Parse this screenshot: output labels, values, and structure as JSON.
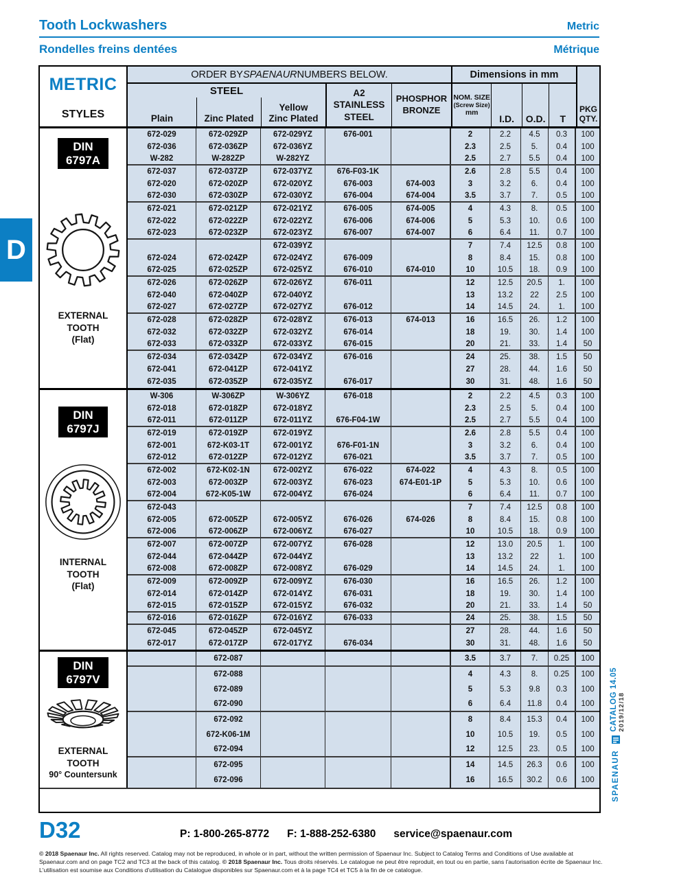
{
  "header": {
    "title_en": "Tooth Lockwashers",
    "title_fr": "Rondelles freins dentées",
    "lang_en": "Metric",
    "lang_fr": "Métrique"
  },
  "side_tab": {
    "letter": "D"
  },
  "table": {
    "order_by": {
      "pre": "ORDER BY ",
      "brand": "SPAENAUR",
      "post": " NUMBERS BELOW."
    },
    "dimensions": "Dimensions in mm",
    "metric": "METRIC",
    "styles": "STYLES",
    "steel": "STEEL",
    "plain": "Plain",
    "zinc": "Zinc Plated",
    "yellow1": "Yellow",
    "yellow2": "Zinc Plated",
    "a2_line1": "A2",
    "a2_line2": "STAINLESS",
    "a2_line3": "STEEL",
    "phos_line1": "PHOSPHOR",
    "phos_line2": "BRONZE",
    "nom_line1": "NOM. SIZE",
    "nom_line2": "(Screw Size)",
    "nom_line3": "mm",
    "id": "I.D.",
    "od": "O.D.",
    "t": "T",
    "pkg_line1": "PKG",
    "pkg_line2": "QTY.",
    "sections": [
      {
        "key": "a",
        "din": [
          "DIN",
          "6797A"
        ],
        "icon": "external-tooth-washer",
        "label_lines": [
          "EXTERNAL",
          "TOOTH",
          "(Flat)"
        ],
        "sublabel": "",
        "group_ends": [
          2,
          5,
          8,
          11,
          14,
          17
        ],
        "rows": [
          [
            "672-029",
            "672-029ZP",
            "672-029YZ",
            "676-001",
            "",
            "2",
            "2.2",
            "4.5",
            "0.3",
            "100"
          ],
          [
            "672-036",
            "672-036ZP",
            "672-036YZ",
            "",
            "",
            "2.3",
            "2.5",
            "5.",
            "0.4",
            "100"
          ],
          [
            "W-282",
            "W-282ZP",
            "W-282YZ",
            "",
            "",
            "2.5",
            "2.7",
            "5.5",
            "0.4",
            "100"
          ],
          [
            "672-037",
            "672-037ZP",
            "672-037YZ",
            "676-F03-1K",
            "",
            "2.6",
            "2.8",
            "5.5",
            "0.4",
            "100"
          ],
          [
            "672-020",
            "672-020ZP",
            "672-020YZ",
            "676-003",
            "674-003",
            "3",
            "3.2",
            "6.",
            "0.4",
            "100"
          ],
          [
            "672-030",
            "672-030ZP",
            "672-030YZ",
            "676-004",
            "674-004",
            "3.5",
            "3.7",
            "7.",
            "0.5",
            "100"
          ],
          [
            "672-021",
            "672-021ZP",
            "672-021YZ",
            "676-005",
            "674-005",
            "4",
            "4.3",
            "8.",
            "0.5",
            "100"
          ],
          [
            "672-022",
            "672-022ZP",
            "672-022YZ",
            "676-006",
            "674-006",
            "5",
            "5.3",
            "10.",
            "0.6",
            "100"
          ],
          [
            "672-023",
            "672-023ZP",
            "672-023YZ",
            "676-007",
            "674-007",
            "6",
            "6.4",
            "11.",
            "0.7",
            "100"
          ],
          [
            "",
            "",
            "672-039YZ",
            "",
            "",
            "7",
            "7.4",
            "12.5",
            "0.8",
            "100"
          ],
          [
            "672-024",
            "672-024ZP",
            "672-024YZ",
            "676-009",
            "",
            "8",
            "8.4",
            "15.",
            "0.8",
            "100"
          ],
          [
            "672-025",
            "672-025ZP",
            "672-025YZ",
            "676-010",
            "674-010",
            "10",
            "10.5",
            "18.",
            "0.9",
            "100"
          ],
          [
            "672-026",
            "672-026ZP",
            "672-026YZ",
            "676-011",
            "",
            "12",
            "12.5",
            "20.5",
            "1.",
            "100"
          ],
          [
            "672-040",
            "672-040ZP",
            "672-040YZ",
            "",
            "",
            "13",
            "13.2",
            "22",
            "2.5",
            "100"
          ],
          [
            "672-027",
            "672-027ZP",
            "672-027YZ",
            "676-012",
            "",
            "14",
            "14.5",
            "24.",
            "1.",
            "100"
          ],
          [
            "672-028",
            "672-028ZP",
            "672-028YZ",
            "676-013",
            "674-013",
            "16",
            "16.5",
            "26.",
            "1.2",
            "100"
          ],
          [
            "672-032",
            "672-032ZP",
            "672-032YZ",
            "676-014",
            "",
            "18",
            "19.",
            "30.",
            "1.4",
            "100"
          ],
          [
            "672-033",
            "672-033ZP",
            "672-033YZ",
            "676-015",
            "",
            "20",
            "21.",
            "33.",
            "1.4",
            "50"
          ],
          [
            "672-034",
            "672-034ZP",
            "672-034YZ",
            "676-016",
            "",
            "24",
            "25.",
            "38.",
            "1.5",
            "50"
          ],
          [
            "672-041",
            "672-041ZP",
            "672-041YZ",
            "",
            "",
            "27",
            "28.",
            "44.",
            "1.6",
            "50"
          ],
          [
            "672-035",
            "672-035ZP",
            "672-035YZ",
            "676-017",
            "",
            "30",
            "31.",
            "48.",
            "1.6",
            "50"
          ]
        ]
      },
      {
        "key": "j",
        "din": [
          "DIN",
          "6797J"
        ],
        "icon": "internal-tooth-washer",
        "label_lines": [
          "INTERNAL",
          "TOOTH",
          "(Flat)"
        ],
        "sublabel": "",
        "group_ends": [
          2,
          5,
          8,
          11,
          14,
          17,
          18
        ],
        "rows": [
          [
            "W-306",
            "W-306ZP",
            "W-306YZ",
            "676-018",
            "",
            "2",
            "2.2",
            "4.5",
            "0.3",
            "100"
          ],
          [
            "672-018",
            "672-018ZP",
            "672-018YZ",
            "",
            "",
            "2.3",
            "2.5",
            "5.",
            "0.4",
            "100"
          ],
          [
            "672-011",
            "672-011ZP",
            "672-011YZ",
            "676-F04-1W",
            "",
            "2.5",
            "2.7",
            "5.5",
            "0.4",
            "100"
          ],
          [
            "672-019",
            "672-019ZP",
            "672-019YZ",
            "",
            "",
            "2.6",
            "2.8",
            "5.5",
            "0.4",
            "100"
          ],
          [
            "672-001",
            "672-K03-1T",
            "672-001YZ",
            "676-F01-1N",
            "",
            "3",
            "3.2",
            "6.",
            "0.4",
            "100"
          ],
          [
            "672-012",
            "672-012ZP",
            "672-012YZ",
            "676-021",
            "",
            "3.5",
            "3.7",
            "7.",
            "0.5",
            "100"
          ],
          [
            "672-002",
            "672-K02-1N",
            "672-002YZ",
            "676-022",
            "674-022",
            "4",
            "4.3",
            "8.",
            "0.5",
            "100"
          ],
          [
            "672-003",
            "672-003ZP",
            "672-003YZ",
            "676-023",
            "674-E01-1P",
            "5",
            "5.3",
            "10.",
            "0.6",
            "100"
          ],
          [
            "672-004",
            "672-K05-1W",
            "672-004YZ",
            "676-024",
            "",
            "6",
            "6.4",
            "11.",
            "0.7",
            "100"
          ],
          [
            "672-043",
            "",
            "",
            "",
            "",
            "7",
            "7.4",
            "12.5",
            "0.8",
            "100"
          ],
          [
            "672-005",
            "672-005ZP",
            "672-005YZ",
            "676-026",
            "674-026",
            "8",
            "8.4",
            "15.",
            "0.8",
            "100"
          ],
          [
            "672-006",
            "672-006ZP",
            "672-006YZ",
            "676-027",
            "",
            "10",
            "10.5",
            "18.",
            "0.9",
            "100"
          ],
          [
            "672-007",
            "672-007ZP",
            "672-007YZ",
            "676-028",
            "",
            "12",
            "13.0",
            "20.5",
            "1.",
            "100"
          ],
          [
            "672-044",
            "672-044ZP",
            "672-044YZ",
            "",
            "",
            "13",
            "13.2",
            "22",
            "1.",
            "100"
          ],
          [
            "672-008",
            "672-008ZP",
            "672-008YZ",
            "676-029",
            "",
            "14",
            "14.5",
            "24.",
            "1.",
            "100"
          ],
          [
            "672-009",
            "672-009ZP",
            "672-009YZ",
            "676-030",
            "",
            "16",
            "16.5",
            "26.",
            "1.2",
            "100"
          ],
          [
            "672-014",
            "672-014ZP",
            "672-014YZ",
            "676-031",
            "",
            "18",
            "19.",
            "30.",
            "1.4",
            "100"
          ],
          [
            "672-015",
            "672-015ZP",
            "672-015YZ",
            "676-032",
            "",
            "20",
            "21.",
            "33.",
            "1.4",
            "50"
          ],
          [
            "672-016",
            "672-016ZP",
            "672-016YZ",
            "676-033",
            "",
            "24",
            "25.",
            "38.",
            "1.5",
            "50"
          ],
          [
            "672-045",
            "672-045ZP",
            "672-045YZ",
            "",
            "",
            "27",
            "28.",
            "44.",
            "1.6",
            "50"
          ],
          [
            "672-017",
            "672-017ZP",
            "672-017YZ",
            "676-034",
            "",
            "30",
            "31.",
            "48.",
            "1.6",
            "50"
          ]
        ]
      },
      {
        "key": "v",
        "din": [
          "DIN",
          "6797V"
        ],
        "icon": "countersunk-external-tooth-washer",
        "label_lines": [
          "EXTERNAL",
          "TOOTH"
        ],
        "sublabel": "90° Countersunk",
        "group_ends": [
          0,
          3,
          6
        ],
        "rows": [
          [
            "",
            "672-087",
            "",
            "",
            "",
            "3.5",
            "3.7",
            "7.",
            "0.25",
            "100"
          ],
          [
            "",
            "672-088",
            "",
            "",
            "",
            "4",
            "4.3",
            "8.",
            "0.25",
            "100"
          ],
          [
            "",
            "672-089",
            "",
            "",
            "",
            "5",
            "5.3",
            "9.8",
            "0.3",
            "100"
          ],
          [
            "",
            "672-090",
            "",
            "",
            "",
            "6",
            "6.4",
            "11.8",
            "0.4",
            "100"
          ],
          [
            "",
            "672-092",
            "",
            "",
            "",
            "8",
            "8.4",
            "15.3",
            "0.4",
            "100"
          ],
          [
            "",
            "672-K06-1M",
            "",
            "",
            "",
            "10",
            "10.5",
            "19.",
            "0.5",
            "100"
          ],
          [
            "",
            "672-094",
            "",
            "",
            "",
            "12",
            "12.5",
            "23.",
            "0.5",
            "100"
          ],
          [
            "",
            "672-095",
            "",
            "",
            "",
            "14",
            "14.5",
            "26.3",
            "0.6",
            "100"
          ],
          [
            "",
            "672-096",
            "",
            "",
            "",
            "16",
            "16.5",
            "30.2",
            "0.6",
            "100"
          ]
        ]
      }
    ]
  },
  "sidebar": {
    "catalog": "CATALOG 14.05",
    "date": "2019/12/18",
    "brand": "SPAENAUR"
  },
  "footer": {
    "page": "D32",
    "phone": "P: 1-800-265-8772",
    "fax": "F: 1-888-252-6380",
    "email": "service@spaenaur.com",
    "legal_en_bold": "© 2018 Spaenaur Inc.",
    "legal_en": " All rights reserved. Catalog may not be reproduced, in whole or in part, without the written permission of Spaenaur Inc. Subject to Catalog Terms and Conditions of Use available at Spaenaur.com and on page TC2 and TC3 at the back of this catalog. ",
    "legal_fr_bold": "© 2018 Spaenaur Inc.",
    "legal_fr": " Tous droits réservés. Le catalogue ne peut être reproduit, en tout ou en partie, sans l'autorisation écrite de Spaenaur Inc. L'utilisation est soumise aux Conditions d'utilisation du Catalogue disponibles sur Spaenaur.com et à la page TC4 et TC5 à la fin de ce catalogue."
  }
}
